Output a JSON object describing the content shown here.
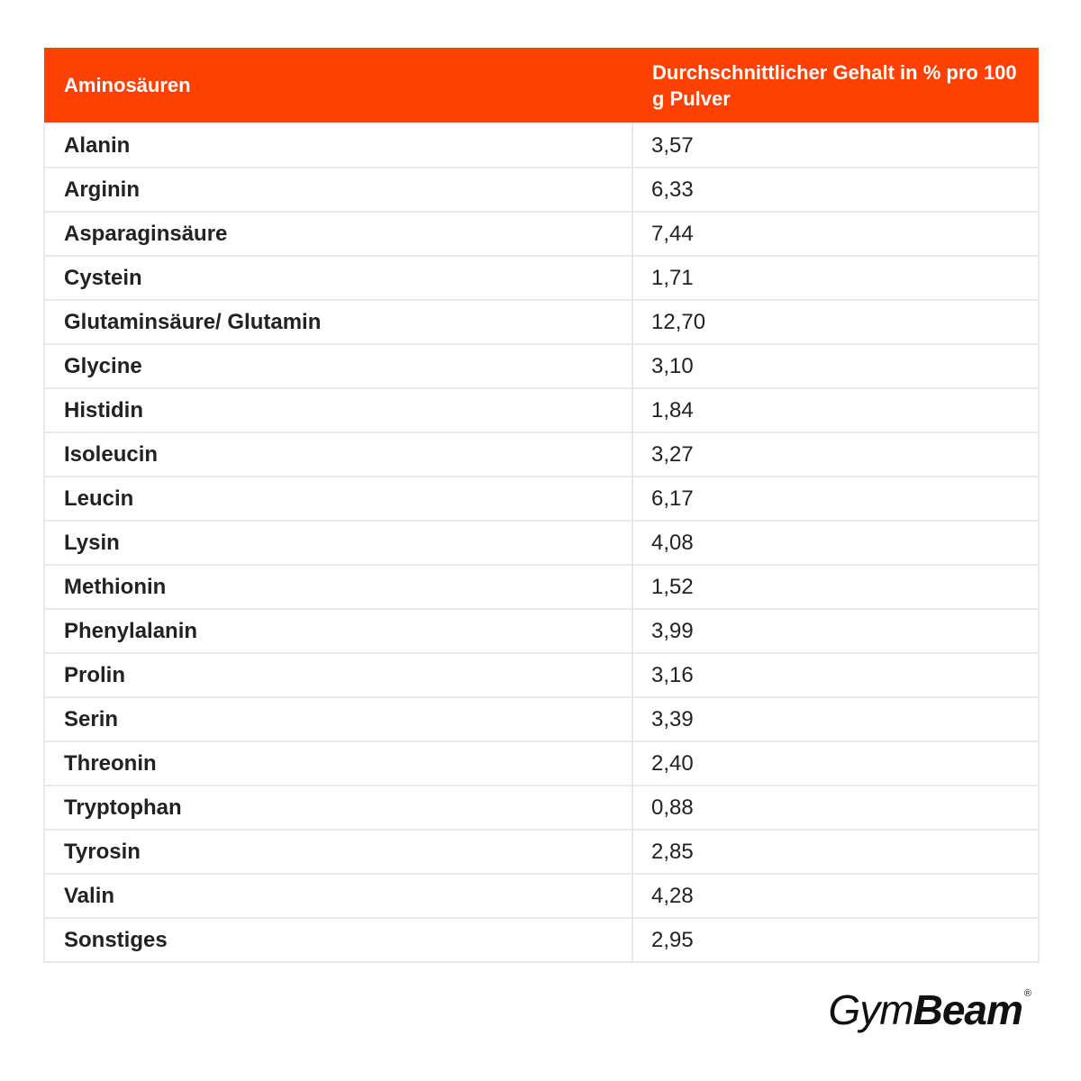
{
  "table": {
    "headers": [
      "Aminosäuren",
      "Durchschnittlicher Gehalt in % pro 100 g Pulver"
    ],
    "rows": [
      [
        "Alanin",
        "3,57"
      ],
      [
        "Arginin",
        "6,33"
      ],
      [
        "Asparaginsäure",
        "7,44"
      ],
      [
        "Cystein",
        "1,71"
      ],
      [
        "Glutaminsäure/ Glutamin",
        "12,70"
      ],
      [
        "Glycine",
        "3,10"
      ],
      [
        "Histidin",
        "1,84"
      ],
      [
        "Isoleucin",
        "3,27"
      ],
      [
        "Leucin",
        "6,17"
      ],
      [
        "Lysin",
        "4,08"
      ],
      [
        "Methionin",
        "1,52"
      ],
      [
        "Phenylalanin",
        "3,99"
      ],
      [
        "Prolin",
        "3,16"
      ],
      [
        "Serin",
        "3,39"
      ],
      [
        "Threonin",
        "2,40"
      ],
      [
        "Tryptophan",
        "0,88"
      ],
      [
        "Tyrosin",
        "2,85"
      ],
      [
        "Valin",
        "4,28"
      ],
      [
        "Sonstiges",
        "2,95"
      ]
    ]
  },
  "logo": {
    "part1": "Gym",
    "part2": "Beam",
    "registered": "®"
  },
  "colors": {
    "header_bg": "#fe4102",
    "header_text": "#ffffff",
    "cell_border": "#e9e9e9",
    "text": "#222222"
  }
}
